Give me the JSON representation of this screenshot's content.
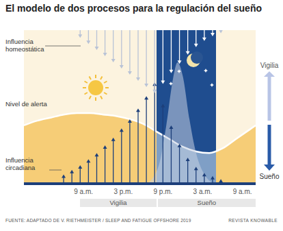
{
  "chart_data": {
    "type": "area",
    "title": "El modelo de dos procesos para la regulación del sueño",
    "xlim": [
      0,
      35
    ],
    "xticks": [
      {
        "value": 9,
        "label": "9 a.m."
      },
      {
        "value": 15,
        "label": "3 p.m."
      },
      {
        "value": 21,
        "label": "9 p.m."
      },
      {
        "value": 27,
        "label": "3 a.m."
      },
      {
        "value": 33,
        "label": "9 a.m."
      }
    ],
    "ylim": [
      0,
      100
    ],
    "tick_labels": "x",
    "grid": false,
    "series": [
      {
        "name": "Nivel de alerta",
        "type": "area",
        "color": "#f6cd77",
        "x": [
          0,
          2,
          4,
          6,
          8,
          10,
          12,
          14,
          16,
          18,
          20,
          22,
          24,
          26,
          28,
          30,
          32,
          34,
          35
        ],
        "values": [
          38,
          41,
          43,
          45,
          46,
          46,
          45,
          44,
          42,
          39,
          34,
          29,
          24,
          21,
          20,
          23,
          29,
          35,
          38
        ]
      },
      {
        "type": "area",
        "color": "#c5d0e2",
        "x": [
          18.5,
          19.5,
          20.5,
          21.5,
          22.5,
          23.2,
          24,
          25,
          26,
          27,
          28,
          29
        ],
        "values": [
          0,
          4,
          14,
          38,
          68,
          79,
          70,
          42,
          20,
          8,
          2,
          0
        ]
      },
      {
        "name": "Influencia circadiana",
        "type": "arrow_up",
        "color": "#1d3f7a",
        "x": [
          6,
          7.25,
          8.5,
          9.75,
          11,
          12.25,
          13.5,
          14.75,
          16,
          17.25,
          18.5,
          19.75,
          21,
          22.25,
          23.5,
          24.75,
          26,
          27.25,
          28.5,
          29.75
        ],
        "values": [
          6,
          9,
          12,
          16,
          20,
          25,
          30,
          36,
          42,
          49,
          57,
          66,
          52,
          38,
          26,
          17,
          11,
          7,
          5,
          3
        ]
      },
      {
        "name": "Influencia homeostática",
        "type": "arrow_down",
        "color": "#b9c3d6",
        "x": [
          8.5,
          9.75,
          11,
          12.25,
          13.5,
          14.75,
          16,
          17.25,
          18.5,
          19.75,
          21,
          22.25,
          23.5,
          24.75,
          26,
          27.25,
          28.5,
          29.75
        ],
        "values": [
          5,
          9,
          13,
          17,
          21,
          25,
          29,
          33,
          37,
          41,
          35,
          28,
          22,
          16,
          11,
          7,
          4,
          2
        ]
      }
    ],
    "night": [
      20,
      29
    ],
    "periods": [
      {
        "label": "Vigilia",
        "start": 8.5,
        "end": 20
      },
      {
        "label": "Sueño",
        "start": 20.2,
        "end": 35
      }
    ],
    "scale_arrow": {
      "top": "Vigilia",
      "bottom": "Sueño"
    },
    "source": "FUENTE: ADAPTADO DE V. RIETHMEISTER / SLEEP AND FATIGUE OFFSHORE 2019",
    "credit": "REVISTA KNOWABLE"
  }
}
